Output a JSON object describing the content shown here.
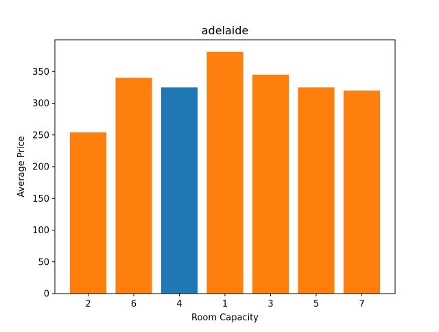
{
  "chart_data": {
    "type": "bar",
    "title": "adelaide",
    "xlabel": "Room Capacity",
    "ylabel": "Average Price",
    "categories": [
      "2",
      "6",
      "4",
      "1",
      "3",
      "5",
      "7"
    ],
    "values": [
      254,
      340,
      325,
      381,
      345,
      325,
      320
    ],
    "bar_colors": [
      "#ff7f0e",
      "#ff7f0e",
      "#1f77b4",
      "#ff7f0e",
      "#ff7f0e",
      "#ff7f0e",
      "#ff7f0e"
    ],
    "ylim": [
      0,
      400
    ],
    "yticks": [
      0,
      50,
      100,
      150,
      200,
      250,
      300,
      350
    ],
    "grid": false,
    "legend": "none"
  }
}
